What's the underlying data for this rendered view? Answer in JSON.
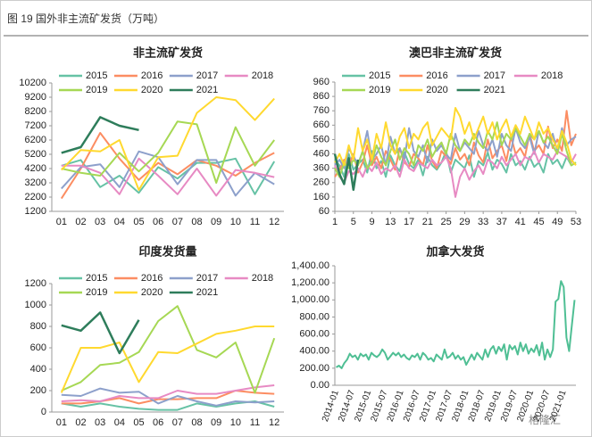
{
  "header": {
    "title": "图 19 国外非主流矿发货（万吨）"
  },
  "watermark": "格隆汇",
  "chart_data": [
    {
      "type": "line",
      "title": "非主流矿发货",
      "categories": [
        "01",
        "02",
        "03",
        "04",
        "05",
        "06",
        "07",
        "08",
        "09",
        "10",
        "11",
        "12"
      ],
      "ylim": [
        1200,
        10200
      ],
      "yticks": [
        1200,
        2200,
        3200,
        4200,
        5200,
        6200,
        7200,
        8200,
        9200,
        10200
      ],
      "series": [
        {
          "name": "2015",
          "color": "#66c2a5",
          "values": [
            4400,
            4800,
            2900,
            3700,
            2500,
            4300,
            3500,
            4600,
            4600,
            4900,
            2400,
            4700
          ]
        },
        {
          "name": "2016",
          "color": "#fc8d62",
          "values": [
            2100,
            4200,
            6700,
            4900,
            3400,
            4600,
            3800,
            4800,
            4400,
            3700,
            4600,
            5300
          ]
        },
        {
          "name": "2017",
          "color": "#8da0cb",
          "values": [
            2800,
            4300,
            4500,
            2900,
            5400,
            5000,
            3100,
            4800,
            4800,
            2300,
            3900,
            3100
          ]
        },
        {
          "name": "2018",
          "color": "#e78ac3",
          "values": [
            4400,
            4400,
            3900,
            2400,
            4900,
            3700,
            2400,
            4200,
            2300,
            4100,
            3900,
            3600
          ]
        },
        {
          "name": "2019",
          "color": "#a6d854",
          "values": [
            4200,
            3900,
            3700,
            5300,
            4000,
            5300,
            7500,
            7300,
            3200,
            7100,
            4400,
            6200
          ]
        },
        {
          "name": "2020",
          "color": "#ffd92f",
          "values": [
            4100,
            5500,
            5400,
            6200,
            2700,
            5000,
            5100,
            8100,
            9200,
            9000,
            7600,
            9100
          ]
        },
        {
          "name": "2021",
          "color": "#2e7d5b",
          "values": [
            5300,
            5700,
            7800,
            7200,
            6900,
            null,
            null,
            null,
            null,
            null,
            null,
            null
          ]
        }
      ]
    },
    {
      "type": "line",
      "title": "澳巴非主流矿发货",
      "x": [
        1,
        2,
        3,
        4,
        5,
        6,
        7,
        8,
        9,
        10,
        11,
        12,
        13,
        14,
        15,
        16,
        17,
        18,
        19,
        20,
        21,
        22,
        23,
        24,
        25,
        26,
        27,
        28,
        29,
        30,
        31,
        32,
        33,
        34,
        35,
        36,
        37,
        38,
        39,
        40,
        41,
        42,
        43,
        44,
        45,
        46,
        47,
        48,
        49,
        50,
        51,
        52,
        53
      ],
      "xlim": [
        1,
        53
      ],
      "xticks": [
        1,
        5,
        9,
        13,
        17,
        21,
        25,
        29,
        33,
        37,
        41,
        45,
        49,
        53
      ],
      "ylim": [
        60,
        960
      ],
      "yticks": [
        60,
        160,
        260,
        360,
        460,
        560,
        660,
        760,
        860,
        960
      ],
      "series": [
        {
          "name": "2015",
          "color": "#66c2a5",
          "values": [
            420,
            380,
            300,
            460,
            350,
            390,
            420,
            330,
            480,
            360,
            410,
            300,
            450,
            380,
            340,
            470,
            390,
            360,
            420,
            310,
            440,
            380,
            350,
            400,
            480,
            330,
            420,
            390,
            360,
            450,
            300,
            410,
            380,
            470,
            350,
            420,
            390,
            330,
            460,
            380,
            410,
            350,
            440,
            370,
            400,
            330,
            460,
            390,
            420,
            360,
            440,
            380,
            400
          ]
        },
        {
          "name": "2016",
          "color": "#fc8d62",
          "values": [
            300,
            350,
            420,
            380,
            460,
            330,
            400,
            520,
            380,
            440,
            360,
            480,
            420,
            350,
            500,
            400,
            370,
            460,
            430,
            380,
            520,
            410,
            360,
            480,
            440,
            390,
            500,
            420,
            460,
            380,
            540,
            450,
            400,
            560,
            430,
            480,
            520,
            410,
            580,
            460,
            500,
            440,
            600,
            480,
            520,
            460,
            650,
            500,
            560,
            480,
            760,
            520,
            600
          ]
        },
        {
          "name": "2017",
          "color": "#8da0cb",
          "values": [
            380,
            420,
            360,
            500,
            440,
            390,
            480,
            620,
            420,
            460,
            520,
            380,
            580,
            460,
            500,
            420,
            640,
            480,
            440,
            520,
            400,
            560,
            480,
            520,
            460,
            420,
            600,
            480,
            540,
            500,
            460,
            620,
            520,
            480,
            560,
            440,
            600,
            520,
            480,
            640,
            540,
            500,
            580,
            460,
            620,
            540,
            500,
            600,
            480,
            640,
            520,
            560,
            580
          ]
        },
        {
          "name": "2018",
          "color": "#e78ac3",
          "values": [
            380,
            300,
            260,
            340,
            320,
            360,
            300,
            380,
            340,
            400,
            320,
            360,
            340,
            380,
            300,
            420,
            360,
            340,
            400,
            380,
            360,
            420,
            380,
            400,
            440,
            360,
            160,
            300,
            360,
            280,
            340,
            380,
            320,
            420,
            400,
            360,
            440,
            380,
            420,
            460,
            380,
            440,
            420,
            480,
            400,
            460,
            440,
            420,
            480,
            460,
            440,
            400,
            460
          ]
        },
        {
          "name": "2019",
          "color": "#a6d854",
          "values": [
            360,
            300,
            400,
            360,
            420,
            380,
            480,
            360,
            400,
            520,
            440,
            380,
            480,
            560,
            420,
            500,
            460,
            380,
            520,
            480,
            560,
            440,
            500,
            540,
            460,
            600,
            520,
            480,
            560,
            520,
            600,
            540,
            500,
            620,
            560,
            680,
            520,
            600,
            560,
            640,
            580,
            520,
            600,
            560,
            620,
            540,
            580,
            520,
            460,
            600,
            480,
            380,
            400
          ]
        },
        {
          "name": "2020",
          "color": "#ffd92f",
          "values": [
            400,
            460,
            380,
            520,
            420,
            640,
            480,
            560,
            420,
            600,
            500,
            680,
            520,
            460,
            580,
            640,
            500,
            600,
            560,
            640,
            680,
            520,
            580,
            640,
            600,
            560,
            780,
            720,
            600,
            680,
            560,
            640,
            720,
            600,
            680,
            560,
            640,
            700,
            580,
            660,
            600,
            720,
            640,
            560,
            680,
            600,
            640,
            560,
            500,
            620,
            540,
            420,
            380
          ]
        },
        {
          "name": "2021",
          "color": "#2e7d5b",
          "values": [
            460,
            320,
            250,
            430,
            210,
            420,
            null,
            null,
            null,
            null,
            null,
            null,
            null,
            null,
            null,
            null,
            null,
            null,
            null,
            null,
            null,
            null,
            null,
            null,
            null,
            null,
            null,
            null,
            null,
            null,
            null,
            null,
            null,
            null,
            null,
            null,
            null,
            null,
            null,
            null,
            null,
            null,
            null,
            null,
            null,
            null,
            null,
            null,
            null,
            null,
            null,
            null,
            null
          ]
        }
      ]
    },
    {
      "type": "line",
      "title": "印度发货量",
      "categories": [
        "01",
        "02",
        "03",
        "04",
        "05",
        "06",
        "07",
        "08",
        "09",
        "10",
        "11",
        "12"
      ],
      "ylim": [
        0,
        1200
      ],
      "yticks": [
        0,
        200,
        400,
        600,
        800,
        1000,
        1200
      ],
      "series": [
        {
          "name": "2015",
          "color": "#66c2a5",
          "values": [
            80,
            50,
            80,
            50,
            30,
            20,
            20,
            80,
            50,
            80,
            100,
            50
          ]
        },
        {
          "name": "2016",
          "color": "#fc8d62",
          "values": [
            80,
            80,
            100,
            130,
            80,
            120,
            120,
            130,
            130,
            200,
            180,
            170
          ]
        },
        {
          "name": "2017",
          "color": "#8da0cb",
          "values": [
            160,
            150,
            220,
            180,
            190,
            80,
            150,
            100,
            60,
            100,
            90,
            100
          ]
        },
        {
          "name": "2018",
          "color": "#e78ac3",
          "values": [
            100,
            110,
            100,
            150,
            130,
            130,
            200,
            170,
            170,
            200,
            230,
            250
          ]
        },
        {
          "name": "2019",
          "color": "#a6d854",
          "values": [
            200,
            280,
            440,
            460,
            560,
            850,
            990,
            580,
            510,
            650,
            180,
            690
          ]
        },
        {
          "name": "2020",
          "color": "#ffd92f",
          "values": [
            180,
            600,
            600,
            650,
            280,
            560,
            550,
            640,
            730,
            760,
            800,
            800
          ]
        },
        {
          "name": "2021",
          "color": "#2e7d5b",
          "values": [
            810,
            760,
            930,
            550,
            860,
            null,
            null,
            null,
            null,
            null,
            null,
            null
          ]
        }
      ]
    },
    {
      "type": "line",
      "title": "加拿大发货",
      "color": "#4fbf94",
      "categories": [
        "2014-01",
        null,
        null,
        null,
        null,
        null,
        "2014-07",
        null,
        null,
        null,
        null,
        null,
        "2015-01",
        null,
        null,
        null,
        null,
        null,
        "2015-07",
        null,
        null,
        null,
        null,
        null,
        "2016-01",
        null,
        null,
        null,
        null,
        null,
        "2016-07",
        null,
        null,
        null,
        null,
        null,
        "2017-01",
        null,
        null,
        null,
        null,
        null,
        "2017-07",
        null,
        null,
        null,
        null,
        null,
        "2018-01",
        null,
        null,
        null,
        null,
        null,
        "2018-07",
        null,
        null,
        null,
        null,
        null,
        "2019-01",
        null,
        null,
        null,
        null,
        null,
        "2019-07",
        null,
        null,
        null,
        null,
        null,
        "2020-01",
        null,
        null,
        null,
        null,
        null,
        "2020-07",
        null,
        null,
        null,
        null,
        null,
        "2021-01",
        null,
        null,
        null,
        null
      ],
      "values": [
        210,
        230,
        200,
        260,
        300,
        370,
        330,
        350,
        300,
        370,
        340,
        360,
        300,
        380,
        350,
        330,
        360,
        420,
        380,
        300,
        340,
        380,
        350,
        380,
        330,
        360,
        320,
        300,
        350,
        330,
        370,
        300,
        380,
        350,
        300,
        320,
        280,
        360,
        330,
        300,
        420,
        320,
        340,
        380,
        310,
        350,
        300,
        330,
        240,
        300,
        360,
        300,
        380,
        340,
        300,
        420,
        330,
        420,
        460,
        370,
        450,
        400,
        480,
        300,
        470,
        420,
        460,
        360,
        500,
        400,
        480,
        370,
        430,
        390,
        470,
        350,
        500,
        300,
        420,
        330,
        420,
        980,
        1010,
        1220,
        1150,
        560,
        400,
        700,
        1000
      ],
      "ylim": [
        0,
        1400
      ],
      "yticks": [
        {
          "value": 0,
          "label": "0.00"
        },
        {
          "value": 200,
          "label": "200.00"
        },
        {
          "value": 400,
          "label": "400.00"
        },
        {
          "value": 600,
          "label": "600.00"
        },
        {
          "value": 800,
          "label": "800.00"
        },
        {
          "value": 1000,
          "label": "1,000.00"
        },
        {
          "value": 1200,
          "label": "1,200.00"
        },
        {
          "value": 1400,
          "label": "1,400.00"
        }
      ]
    }
  ]
}
